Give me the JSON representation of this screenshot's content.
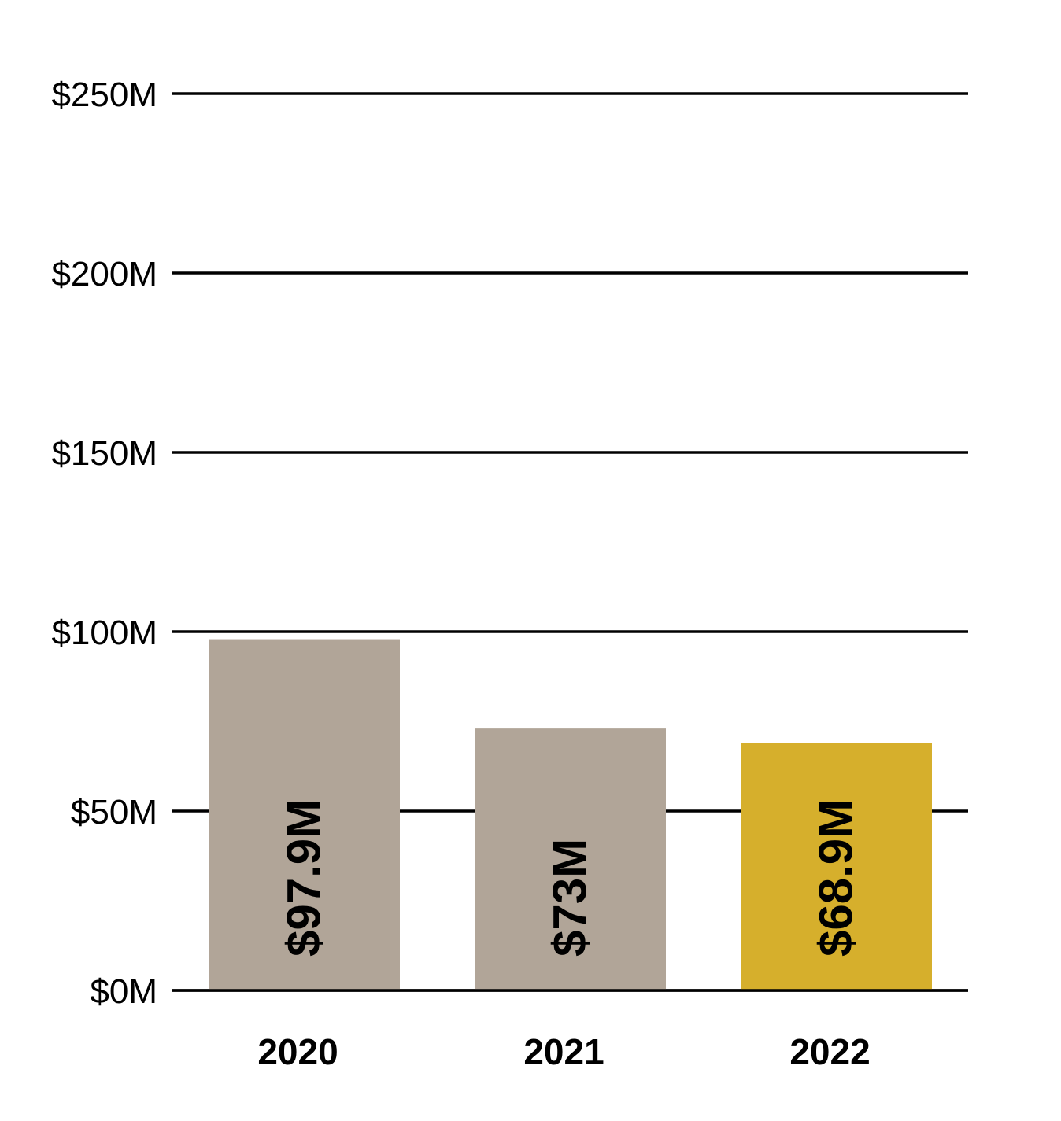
{
  "chart_data": {
    "type": "bar",
    "title": "",
    "xlabel": "",
    "ylabel": "",
    "categories": [
      "2020",
      "2021",
      "2022"
    ],
    "values": [
      97.9,
      73,
      68.9
    ],
    "value_labels": [
      "$97.9M",
      "$73M",
      "$68.9M"
    ],
    "bar_colors": [
      "#b1a598",
      "#b1a598",
      "#d6af2c"
    ],
    "ylim": [
      0,
      250
    ],
    "yticks": [
      0,
      50,
      100,
      150,
      200,
      250
    ],
    "ytick_labels": [
      "$0M",
      "$50M",
      "$100M",
      "$150M",
      "$200M",
      "$250M"
    ],
    "grid": true,
    "legend": "none"
  }
}
